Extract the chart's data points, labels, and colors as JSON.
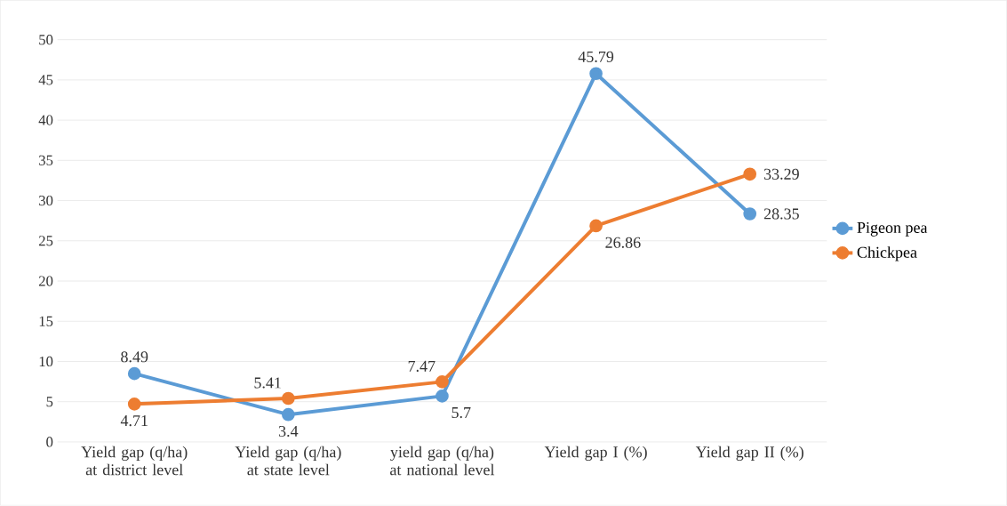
{
  "chart_data": {
    "type": "line",
    "categories": [
      "Yield gap (q/ha) at district level",
      "Yield gap (q/ha) at state level",
      "yield gap (q/ha) at national level",
      "Yield gap I (%)",
      "Yield gap II (%)"
    ],
    "series": [
      {
        "name": "Pigeon pea",
        "color": "#5b9bd5",
        "values": [
          8.49,
          3.4,
          5.7,
          45.79,
          28.35
        ]
      },
      {
        "name": "Chickpea",
        "color": "#ed7d31",
        "values": [
          4.71,
          5.41,
          7.47,
          26.86,
          33.29
        ]
      }
    ],
    "ylim": [
      0,
      50
    ],
    "yticks": [
      0,
      5,
      10,
      15,
      20,
      25,
      30,
      35,
      40,
      45,
      50
    ],
    "grid": "y",
    "legend": "right",
    "marker": "circle",
    "line_style": "solid",
    "data_labels": true
  }
}
